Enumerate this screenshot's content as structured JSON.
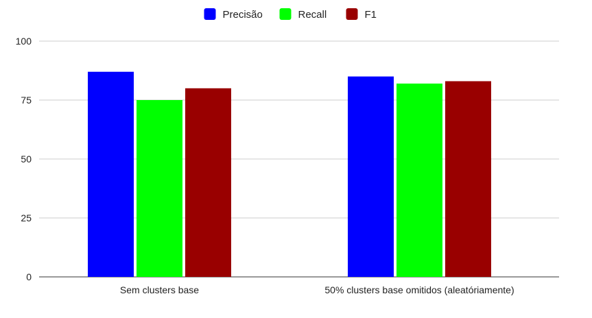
{
  "chart_data": {
    "type": "bar",
    "title": "",
    "xlabel": "",
    "ylabel": "",
    "categories": [
      "Sem clusters base",
      "50% clusters base omitidos (aleatóriamente)"
    ],
    "series": [
      {
        "name": "Precisão",
        "color": "#0000ff",
        "values": [
          87,
          85
        ]
      },
      {
        "name": "Recall",
        "color": "#00ff00",
        "values": [
          75,
          82
        ]
      },
      {
        "name": "F1",
        "color": "#990000",
        "values": [
          80,
          83
        ]
      }
    ],
    "ylim": [
      0,
      100
    ],
    "yticks": [
      "0",
      "25",
      "50",
      "75",
      "100"
    ],
    "grid": true,
    "legend_position": "top-center"
  }
}
